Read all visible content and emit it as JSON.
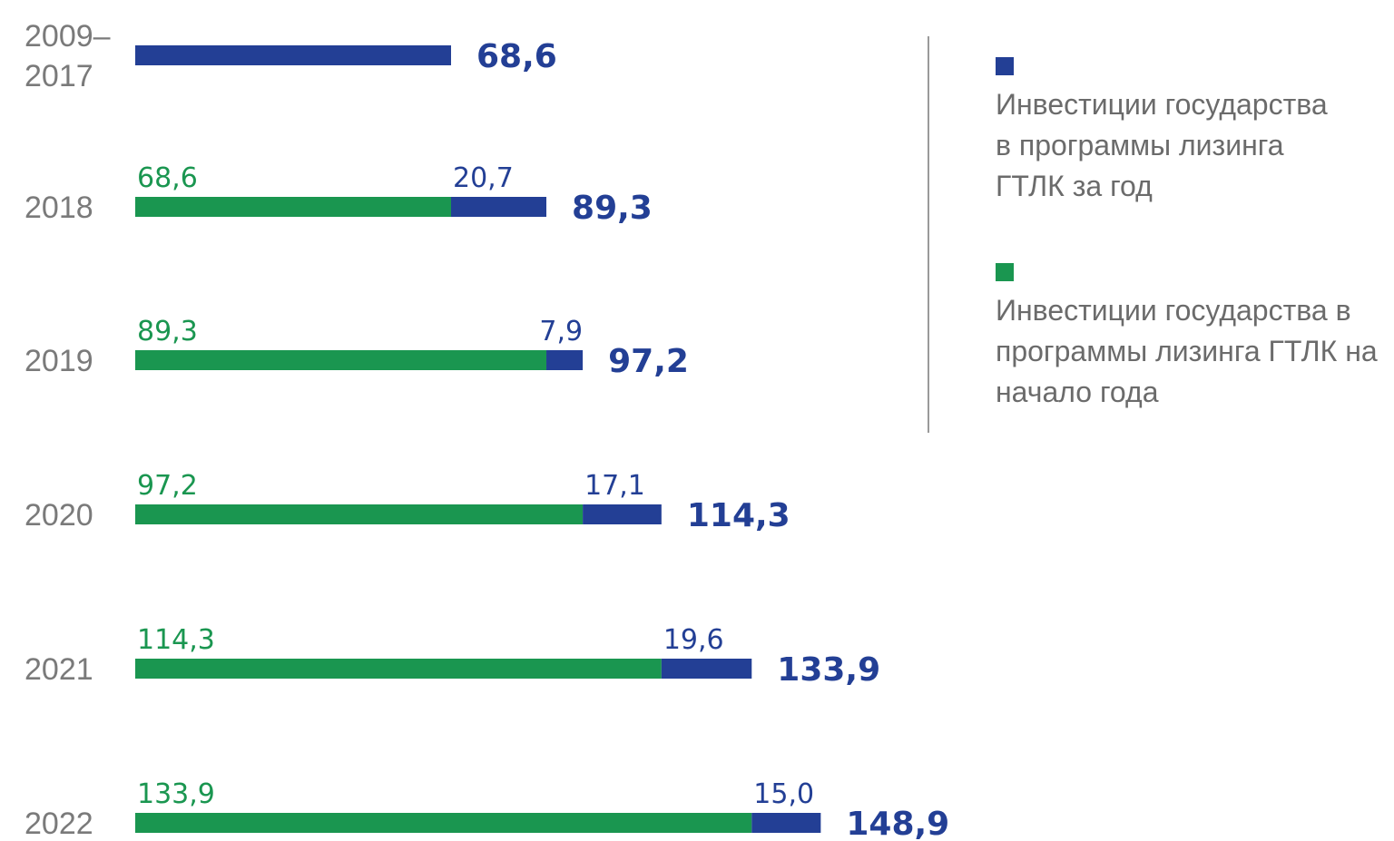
{
  "chart_data": {
    "type": "stacked-bar-horizontal",
    "categories": [
      "2009–\n2017",
      "2018",
      "2019",
      "2020",
      "2021",
      "2022"
    ],
    "series": [
      {
        "name": "Инвестиции государства в программы лизинга ГТЛК на начало года",
        "color": "#1a9650",
        "values": [
          null,
          68.6,
          89.3,
          97.2,
          114.3,
          133.9
        ],
        "value_labels": [
          null,
          "68,6",
          "89,3",
          "97,2",
          "114,3",
          "133,9"
        ]
      },
      {
        "name": "Инвестиции государства в программы лизинга ГТЛК за год",
        "color": "#233f95",
        "values": [
          68.6,
          20.7,
          7.9,
          17.1,
          19.6,
          15.0
        ],
        "value_labels": [
          null,
          "20,7",
          "7,9",
          "17,1",
          "19,6",
          "15,0"
        ]
      }
    ],
    "totals": [
      68.6,
      89.3,
      97.2,
      114.3,
      133.9,
      148.9
    ],
    "total_labels": [
      "68,6",
      "89,3",
      "97,2",
      "114,3",
      "133,9",
      "148,9"
    ],
    "total_color": "#233f95",
    "legend_order": [
      1,
      0
    ]
  }
}
